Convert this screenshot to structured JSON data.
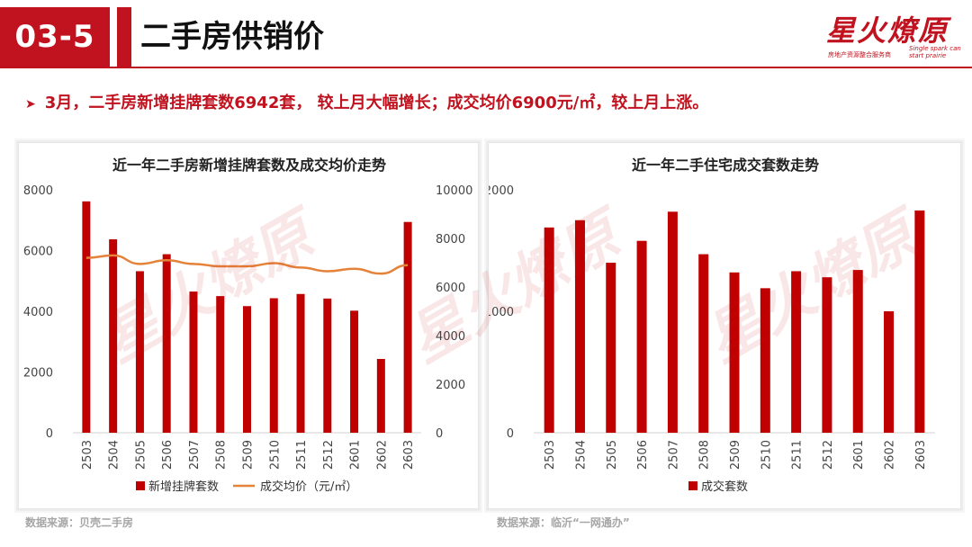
{
  "header": {
    "section_number": "03-5",
    "title": "二手房供销价",
    "logo_text": "星火燎原",
    "logo_sub_cn": "房地产资源整合服务商",
    "logo_sub_en": "Single spark can start prairie"
  },
  "bullet_text": "3月，二手房新增挂牌套数6942套， 较上月大幅增长；成交均价6900元/㎡，较上月上涨。",
  "sources": {
    "left": "数据来源：贝壳二手房",
    "right": "数据来源：临沂“一网通办”"
  },
  "colors": {
    "brand": "#c1121f",
    "bar": "#c00000",
    "line": "#e5823a"
  },
  "chart_data": [
    {
      "type": "bar",
      "title": "近一年二手房新增挂牌套数及成交均价走势",
      "categories": [
        "2503",
        "2504",
        "2505",
        "2506",
        "2507",
        "2508",
        "2509",
        "2510",
        "2511",
        "2512",
        "2601",
        "2602",
        "2603"
      ],
      "ylim": [
        0,
        8000
      ],
      "yticks": [
        0,
        2000,
        4000,
        6000,
        8000
      ],
      "y2lim": [
        0,
        10000
      ],
      "y2ticks": [
        0,
        2000,
        4000,
        6000,
        8000,
        10000
      ],
      "series": [
        {
          "name": "新增挂牌套数",
          "type": "bar",
          "axis": "left",
          "values": [
            7620,
            6370,
            5320,
            5880,
            4650,
            4500,
            4170,
            4430,
            4570,
            4420,
            4020,
            2430,
            6942
          ]
        },
        {
          "name": "成交均价（元/㎡）",
          "type": "line",
          "axis": "right",
          "values": [
            7200,
            7300,
            6950,
            7100,
            6950,
            6850,
            6850,
            6980,
            6800,
            6650,
            6750,
            6550,
            6900
          ]
        }
      ],
      "legend_position": "bottom"
    },
    {
      "type": "bar",
      "title": "近一年二手住宅成交套数走势",
      "categories": [
        "2503",
        "2504",
        "2505",
        "2506",
        "2507",
        "2508",
        "2509",
        "2510",
        "2511",
        "2512",
        "2601",
        "2602",
        "2603"
      ],
      "ylim": [
        0,
        2000
      ],
      "yticks": [
        0,
        1000,
        2000
      ],
      "series": [
        {
          "name": "成交套数",
          "type": "bar",
          "axis": "left",
          "values": [
            1690,
            1750,
            1400,
            1580,
            1820,
            1470,
            1320,
            1190,
            1330,
            1280,
            1340,
            1000,
            1830
          ]
        }
      ],
      "legend_position": "bottom"
    }
  ]
}
